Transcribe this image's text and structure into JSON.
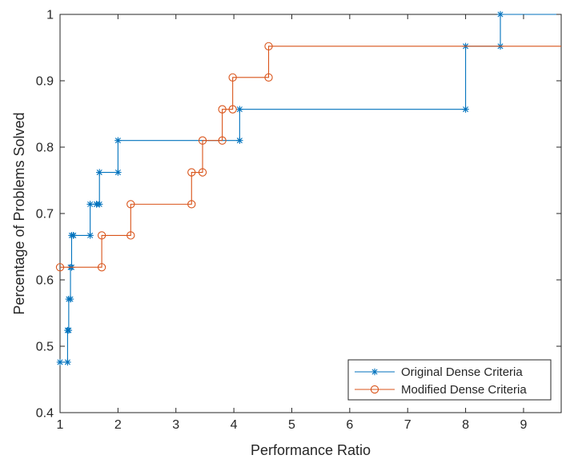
{
  "chart_data": {
    "type": "line",
    "subtype": "stairs",
    "title": "",
    "xlabel": "Performance Ratio",
    "ylabel": "Percentage of Problems Solved",
    "xlim": [
      1,
      9.65
    ],
    "ylim": [
      0.4,
      1.0
    ],
    "xticks": [
      1,
      2,
      3,
      4,
      5,
      6,
      7,
      8,
      9
    ],
    "yticks": [
      0.4,
      0.5,
      0.6,
      0.7,
      0.8,
      0.9,
      1
    ],
    "ytick_labels": [
      "0.4",
      "0.5",
      "0.6",
      "0.7",
      "0.8",
      "0.9",
      "1"
    ],
    "grid": false,
    "box": true,
    "legend_location": "bottom-right",
    "series": [
      {
        "name": "Original Dense Criteria",
        "color": "#0072BD",
        "marker": "asterisk",
        "x": [
          1.0,
          1.13,
          1.13,
          1.15,
          1.15,
          1.18,
          1.18,
          1.2,
          1.2,
          1.23,
          1.23,
          1.52,
          1.52,
          1.63,
          1.63,
          1.68,
          1.68,
          2.0,
          2.0,
          4.1,
          4.1,
          8.0,
          8.0,
          8.6,
          8.6,
          9.65
        ],
        "y": [
          0.476,
          0.476,
          0.524,
          0.524,
          0.571,
          0.571,
          0.619,
          0.619,
          0.667,
          0.667,
          0.667,
          0.667,
          0.714,
          0.714,
          0.714,
          0.714,
          0.762,
          0.762,
          0.81,
          0.81,
          0.857,
          0.857,
          0.952,
          0.952,
          1.0,
          1.0
        ]
      },
      {
        "name": "Modified Dense Criteria",
        "color": "#D95319",
        "marker": "circle",
        "x": [
          1.0,
          1.72,
          1.72,
          2.22,
          2.22,
          3.27,
          3.27,
          3.46,
          3.46,
          3.8,
          3.8,
          3.98,
          3.98,
          4.6,
          4.6,
          9.65
        ],
        "y": [
          0.619,
          0.619,
          0.667,
          0.667,
          0.714,
          0.714,
          0.762,
          0.762,
          0.81,
          0.81,
          0.857,
          0.857,
          0.905,
          0.905,
          0.952,
          0.952
        ]
      }
    ]
  }
}
